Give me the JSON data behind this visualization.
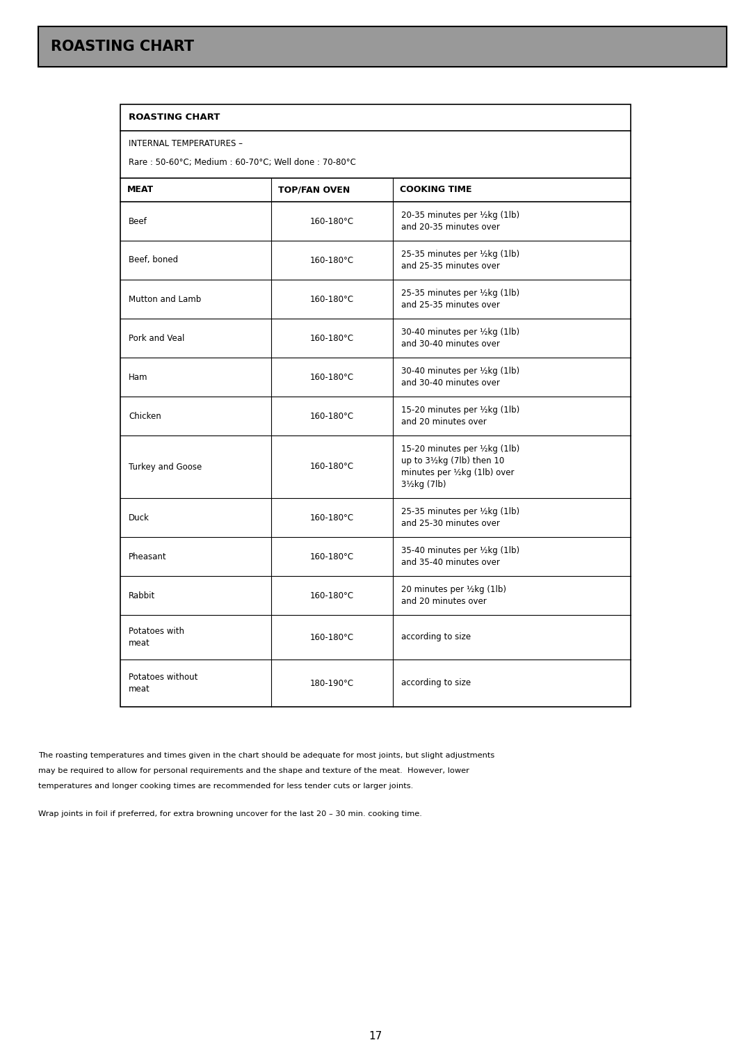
{
  "page_title": "ROASTING CHART",
  "page_title_bg": "#999999",
  "page_title_text_color": "#000000",
  "table_title": "ROASTING CHART",
  "internal_temps_line1": "INTERNAL TEMPERATURES –",
  "internal_temps_line2": "Rare : 50-60°C; Medium : 60-70°C; Well done : 70-80°C",
  "col_headers": [
    "MEAT",
    "TOP/FAN OVEN",
    "COOKING TIME"
  ],
  "rows": [
    {
      "meat": "Beef",
      "temp": "160-180°C",
      "cooking_time": "20-35 minutes per ½kg (1lb)\nand 20-35 minutes over"
    },
    {
      "meat": "Beef, boned",
      "temp": "160-180°C",
      "cooking_time": "25-35 minutes per ½kg (1lb)\nand 25-35 minutes over"
    },
    {
      "meat": "Mutton and Lamb",
      "temp": "160-180°C",
      "cooking_time": "25-35 minutes per ½kg (1lb)\nand 25-35 minutes over"
    },
    {
      "meat": "Pork and Veal",
      "temp": "160-180°C",
      "cooking_time": "30-40 minutes per ½kg (1lb)\nand 30-40 minutes over"
    },
    {
      "meat": "Ham",
      "temp": "160-180°C",
      "cooking_time": "30-40 minutes per ½kg (1lb)\nand 30-40 minutes over"
    },
    {
      "meat": "Chicken",
      "temp": "160-180°C",
      "cooking_time": "15-20 minutes per ½kg (1lb)\nand 20 minutes over"
    },
    {
      "meat": "Turkey and Goose",
      "temp": "160-180°C",
      "cooking_time": "15-20 minutes per ½kg (1lb)\nup to 3½kg (7lb) then 10\nminutes per ½kg (1lb) over\n3½kg (7lb)"
    },
    {
      "meat": "Duck",
      "temp": "160-180°C",
      "cooking_time": "25-35 minutes per ½kg (1lb)\nand 25-30 minutes over"
    },
    {
      "meat": "Pheasant",
      "temp": "160-180°C",
      "cooking_time": "35-40 minutes per ½kg (1lb)\nand 35-40 minutes over"
    },
    {
      "meat": "Rabbit",
      "temp": "160-180°C",
      "cooking_time": "20 minutes per ½kg (1lb)\nand 20 minutes over"
    },
    {
      "meat": "Potatoes with\nmeat",
      "temp": "160-180°C",
      "cooking_time": "according to size"
    },
    {
      "meat": "Potatoes without\nmeat",
      "temp": "180-190°C",
      "cooking_time": "according to size"
    }
  ],
  "footer_text1": "The roasting temperatures and times given in the chart should be adequate for most joints, but slight adjustments\nmay be required to allow for personal requirements and the shape and texture of the meat.  However, lower\ntemperatures and longer cooking times are recommended for less tender cuts or larger joints.",
  "footer_text2": "Wrap joints in foil if preferred, for extra browning uncover for the last 20 – 30 min. cooking time.",
  "page_number": "17",
  "bg_color": "#ffffff",
  "text_color": "#000000",
  "border_color": "#000000",
  "banner_bg": "#999999",
  "table_border_color": "#000000"
}
